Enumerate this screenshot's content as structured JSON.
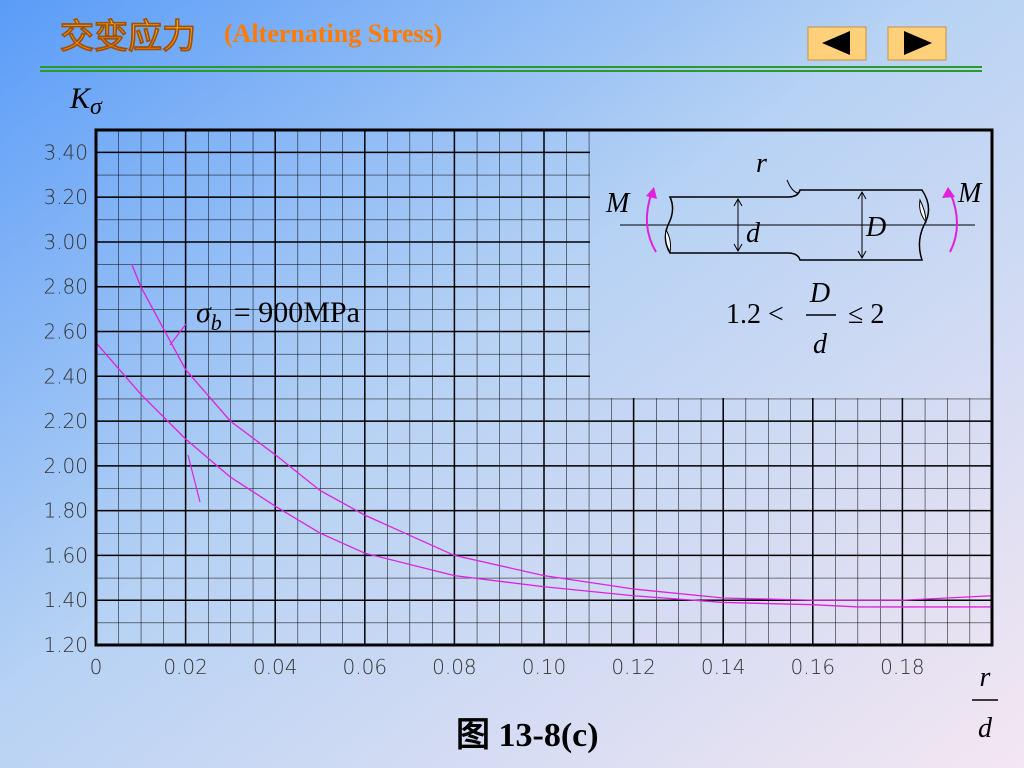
{
  "header": {
    "title_cn": "交变应力",
    "title_en": "(Alternating  Stress)"
  },
  "caption": "图 13-8(c)",
  "chart_data": {
    "type": "line",
    "y_label": {
      "main": "K",
      "sub": "σ"
    },
    "x_label": {
      "num": "r",
      "den": "d"
    },
    "xlim": [
      0,
      0.2
    ],
    "ylim": [
      1.2,
      3.5
    ],
    "xticks": [
      0,
      {
        "value": 0.02,
        "label": "0.02"
      },
      {
        "value": 0.04,
        "label": "0.04"
      },
      {
        "value": 0.06,
        "label": "0.06"
      },
      {
        "value": 0.08,
        "label": "0.08"
      },
      {
        "value": 0.1,
        "label": "0.10"
      },
      {
        "value": 0.12,
        "label": "0.12"
      },
      {
        "value": 0.14,
        "label": "0.14"
      },
      {
        "value": 0.16,
        "label": "0.16"
      },
      {
        "value": 0.18,
        "label": "0.18"
      }
    ],
    "yticks": [
      {
        "value": 1.2,
        "label": "1.20"
      },
      {
        "value": 1.4,
        "label": "1.40"
      },
      {
        "value": 1.6,
        "label": "1.60"
      },
      {
        "value": 1.8,
        "label": "1.80"
      },
      {
        "value": 2.0,
        "label": "2.00"
      },
      {
        "value": 2.2,
        "label": "2.20"
      },
      {
        "value": 2.4,
        "label": "2.40"
      },
      {
        "value": 2.6,
        "label": "2.60"
      },
      {
        "value": 2.8,
        "label": "2.80"
      },
      {
        "value": 3.0,
        "label": "3.00"
      },
      {
        "value": 3.2,
        "label": "3.20"
      },
      {
        "value": 3.4,
        "label": "3.40"
      }
    ],
    "grid": true,
    "series": [
      {
        "color": "#e020e0",
        "x": [
          0.008,
          0.01,
          0.02,
          0.03,
          0.04,
          0.05,
          0.06,
          0.08,
          0.1,
          0.12,
          0.14,
          0.16,
          0.18,
          0.2
        ],
        "values": [
          2.9,
          2.8,
          2.43,
          2.2,
          2.05,
          1.89,
          1.78,
          1.6,
          1.51,
          1.45,
          1.41,
          1.4,
          1.4,
          1.42
        ]
      },
      {
        "color": "#e020e0",
        "x": [
          0,
          0.01,
          0.02,
          0.03,
          0.04,
          0.05,
          0.06,
          0.08,
          0.1,
          0.12,
          0.14,
          0.16,
          0.17,
          0.2
        ],
        "values": [
          2.55,
          2.32,
          2.12,
          1.95,
          1.82,
          1.7,
          1.61,
          1.51,
          1.46,
          1.42,
          1.39,
          1.38,
          1.37,
          1.37
        ]
      }
    ],
    "annotation": {
      "symbol": "σ",
      "sub": "b",
      "text": "= 900MPa"
    },
    "inset": {
      "r": "r",
      "m_left": "M",
      "d": "d",
      "D": "D",
      "m_right": "M",
      "formula_left": "1.2 <",
      "frac_num": "D",
      "frac_den": "d",
      "formula_right": "≤ 2"
    }
  }
}
